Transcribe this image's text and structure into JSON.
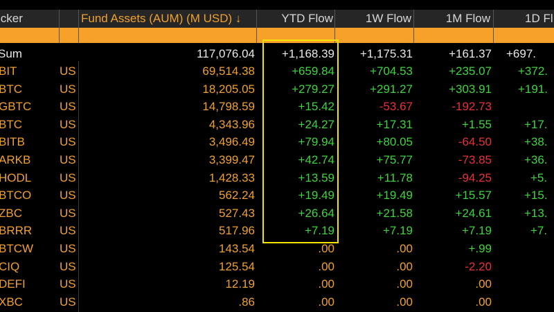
{
  "colors": {
    "accent": "#f7a12a",
    "positive": "#3ed43e",
    "negative": "#e8303a",
    "highlight": "#f5e400"
  },
  "headers": {
    "ticker": "icker",
    "aum": "Fund Assets (AUM) (M USD) ↓",
    "ytd": "YTD Flow",
    "w1": "1W Flow",
    "m1": "1M Flow",
    "d1": "1D Fl"
  },
  "sum": {
    "label": "Sum",
    "aum": "117,076.04",
    "ytd": "+1,168.39",
    "w1": "+1,175.31",
    "m1": "+161.37",
    "d1": "+697."
  },
  "rows": [
    {
      "ticker": "BIT",
      "country": "US",
      "aum": "69,514.38",
      "ytd": "+659.84",
      "w1": "+704.53",
      "m1": "+235.07",
      "d1": "+372.",
      "c": [
        "green",
        "green",
        "green",
        "green"
      ]
    },
    {
      "ticker": "BTC",
      "country": "US",
      "aum": "18,205.05",
      "ytd": "+279.27",
      "w1": "+291.27",
      "m1": "+303.91",
      "d1": "+191.",
      "c": [
        "green",
        "green",
        "green",
        "green"
      ]
    },
    {
      "ticker": "GBTC",
      "country": "US",
      "aum": "14,798.59",
      "ytd": "+15.42",
      "w1": "-53.67",
      "m1": "-192.73",
      "d1": "",
      "c": [
        "green",
        "red",
        "red",
        "green"
      ]
    },
    {
      "ticker": "BTC",
      "country": "US",
      "aum": "4,343.96",
      "ytd": "+24.27",
      "w1": "+17.31",
      "m1": "+1.55",
      "d1": "+17.",
      "c": [
        "green",
        "green",
        "green",
        "green"
      ]
    },
    {
      "ticker": "BITB",
      "country": "US",
      "aum": "3,496.49",
      "ytd": "+79.94",
      "w1": "+80.05",
      "m1": "-64.50",
      "d1": "+38.",
      "c": [
        "green",
        "green",
        "red",
        "green"
      ]
    },
    {
      "ticker": "ARKB",
      "country": "US",
      "aum": "3,399.47",
      "ytd": "+42.74",
      "w1": "+75.77",
      "m1": "-73.85",
      "d1": "+36.",
      "c": [
        "green",
        "green",
        "red",
        "green"
      ]
    },
    {
      "ticker": "HODL",
      "country": "US",
      "aum": "1,428.33",
      "ytd": "+13.59",
      "w1": "+11.78",
      "m1": "-94.25",
      "d1": "+5.",
      "c": [
        "green",
        "green",
        "red",
        "green"
      ]
    },
    {
      "ticker": "BTCO",
      "country": "US",
      "aum": "562.24",
      "ytd": "+19.49",
      "w1": "+19.49",
      "m1": "+15.57",
      "d1": "+15.",
      "c": [
        "green",
        "green",
        "green",
        "green"
      ]
    },
    {
      "ticker": "ZBC",
      "country": "US",
      "aum": "527.43",
      "ytd": "+26.64",
      "w1": "+21.58",
      "m1": "+24.61",
      "d1": "+13.",
      "c": [
        "green",
        "green",
        "green",
        "green"
      ]
    },
    {
      "ticker": "BRRR",
      "country": "US",
      "aum": "517.96",
      "ytd": "+7.19",
      "w1": "+7.19",
      "m1": "+7.19",
      "d1": "+7.",
      "c": [
        "green",
        "green",
        "green",
        "green"
      ]
    },
    {
      "ticker": "BTCW",
      "country": "US",
      "aum": "143.54",
      "ytd": ".00",
      "w1": ".00",
      "m1": "+.99",
      "d1": "",
      "c": [
        "orange",
        "orange",
        "green",
        "orange"
      ]
    },
    {
      "ticker": "CIQ",
      "country": "US",
      "aum": "125.54",
      "ytd": ".00",
      "w1": ".00",
      "m1": "-2.20",
      "d1": "",
      "c": [
        "orange",
        "orange",
        "red",
        "orange"
      ]
    },
    {
      "ticker": "DEFI",
      "country": "US",
      "aum": "12.19",
      "ytd": ".00",
      "w1": ".00",
      "m1": ".00",
      "d1": "",
      "c": [
        "orange",
        "orange",
        "orange",
        "orange"
      ]
    },
    {
      "ticker": "XBC",
      "country": "US",
      "aum": ".86",
      "ytd": ".00",
      "w1": ".00",
      "m1": ".00",
      "d1": "",
      "c": [
        "orange",
        "orange",
        "orange",
        "orange"
      ]
    }
  ]
}
